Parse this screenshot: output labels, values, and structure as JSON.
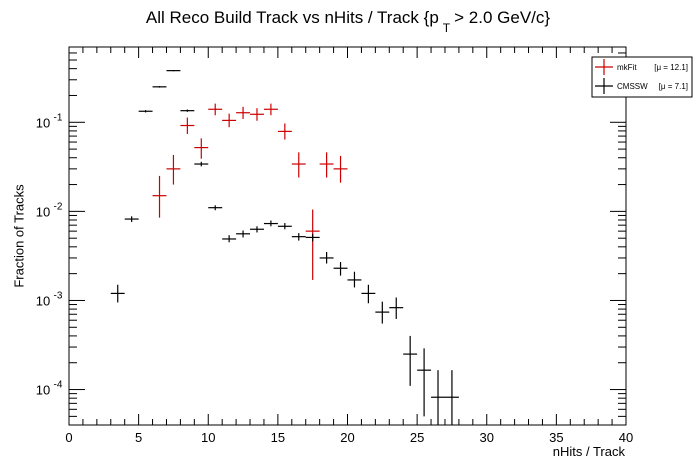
{
  "chart_data": {
    "type": "scatter",
    "title": {
      "prefix": "All Reco Build Track vs nHits / Track {p",
      "subscript": "T",
      "suffix": "> 2.0 GeV/c}"
    },
    "xlabel": "nHits / Track",
    "ylabel": "Fraction of Tracks",
    "xlim": [
      0,
      40
    ],
    "ylim": [
      4e-05,
      0.7
    ],
    "yscale": "log",
    "grid": false,
    "legend_position": "top-right",
    "x_ticks": [
      0,
      5,
      10,
      15,
      20,
      25,
      30,
      35,
      40
    ],
    "y_ticks": [
      {
        "value": 0.0001,
        "base": "10",
        "exp": "-4"
      },
      {
        "value": 0.001,
        "base": "10",
        "exp": "-3"
      },
      {
        "value": 0.01,
        "base": "10",
        "exp": "-2"
      },
      {
        "value": 0.1,
        "base": "10",
        "exp": "-1"
      }
    ],
    "series": [
      {
        "name": "mkFit",
        "legend_stat": "[μ = 12.1]",
        "color": "#cc0000",
        "points": [
          {
            "x": 6.5,
            "y": 0.015,
            "lo": 0.0085,
            "hi": 0.025
          },
          {
            "x": 7.5,
            "y": 0.03,
            "lo": 0.02,
            "hi": 0.043
          },
          {
            "x": 8.5,
            "y": 0.092,
            "lo": 0.074,
            "hi": 0.113
          },
          {
            "x": 9.5,
            "y": 0.052,
            "lo": 0.039,
            "hi": 0.066
          },
          {
            "x": 10.5,
            "y": 0.14,
            "lo": 0.12,
            "hi": 0.162
          },
          {
            "x": 11.5,
            "y": 0.105,
            "lo": 0.088,
            "hi": 0.125
          },
          {
            "x": 12.5,
            "y": 0.128,
            "lo": 0.109,
            "hi": 0.149
          },
          {
            "x": 13.5,
            "y": 0.123,
            "lo": 0.104,
            "hi": 0.144
          },
          {
            "x": 14.5,
            "y": 0.14,
            "lo": 0.12,
            "hi": 0.162
          },
          {
            "x": 15.5,
            "y": 0.079,
            "lo": 0.064,
            "hi": 0.097
          },
          {
            "x": 16.5,
            "y": 0.034,
            "lo": 0.024,
            "hi": 0.046
          },
          {
            "x": 17.5,
            "y": 0.006,
            "lo": 0.0017,
            "hi": 0.0105
          },
          {
            "x": 18.5,
            "y": 0.034,
            "lo": 0.024,
            "hi": 0.046
          },
          {
            "x": 19.5,
            "y": 0.03,
            "lo": 0.021,
            "hi": 0.042
          }
        ]
      },
      {
        "name": "CMSSW",
        "legend_stat": "[μ =  7.1]",
        "color": "#000000",
        "points": [
          {
            "x": 3.5,
            "y": 0.0012,
            "lo": 0.00095,
            "hi": 0.0015
          },
          {
            "x": 4.5,
            "y": 0.0082,
            "lo": 0.0076,
            "hi": 0.0088
          },
          {
            "x": 5.5,
            "y": 0.133,
            "lo": 0.129,
            "hi": 0.137
          },
          {
            "x": 6.5,
            "y": 0.25,
            "lo": 0.245,
            "hi": 0.255
          },
          {
            "x": 7.5,
            "y": 0.38,
            "lo": 0.374,
            "hi": 0.386
          },
          {
            "x": 8.5,
            "y": 0.135,
            "lo": 0.131,
            "hi": 0.139
          },
          {
            "x": 9.5,
            "y": 0.034,
            "lo": 0.032,
            "hi": 0.036
          },
          {
            "x": 10.5,
            "y": 0.011,
            "lo": 0.0103,
            "hi": 0.0117
          },
          {
            "x": 11.5,
            "y": 0.0049,
            "lo": 0.0045,
            "hi": 0.0054
          },
          {
            "x": 12.5,
            "y": 0.0056,
            "lo": 0.0051,
            "hi": 0.0061
          },
          {
            "x": 13.5,
            "y": 0.0063,
            "lo": 0.0058,
            "hi": 0.0068
          },
          {
            "x": 14.5,
            "y": 0.0073,
            "lo": 0.0068,
            "hi": 0.0079
          },
          {
            "x": 15.5,
            "y": 0.0068,
            "lo": 0.0063,
            "hi": 0.0074
          },
          {
            "x": 16.5,
            "y": 0.0052,
            "lo": 0.0047,
            "hi": 0.0057
          },
          {
            "x": 17.5,
            "y": 0.0051,
            "lo": 0.0046,
            "hi": 0.0056
          },
          {
            "x": 18.5,
            "y": 0.003,
            "lo": 0.0026,
            "hi": 0.0035
          },
          {
            "x": 19.5,
            "y": 0.0023,
            "lo": 0.0019,
            "hi": 0.0027
          },
          {
            "x": 20.5,
            "y": 0.0017,
            "lo": 0.0014,
            "hi": 0.0021
          },
          {
            "x": 21.5,
            "y": 0.0012,
            "lo": 0.00093,
            "hi": 0.0015
          },
          {
            "x": 22.5,
            "y": 0.00074,
            "lo": 0.00055,
            "hi": 0.00097
          },
          {
            "x": 23.5,
            "y": 0.00083,
            "lo": 0.00062,
            "hi": 0.00108
          },
          {
            "x": 24.5,
            "y": 0.00025,
            "lo": 0.00011,
            "hi": 0.0004
          },
          {
            "x": 25.5,
            "y": 0.000165,
            "lo": 5e-05,
            "hi": 0.00029
          },
          {
            "x": 26.5,
            "y": 8.2e-05,
            "lo": 4e-05,
            "hi": 0.000165
          },
          {
            "x": 27.5,
            "y": 8.2e-05,
            "lo": 4e-05,
            "hi": 0.000165
          }
        ]
      }
    ]
  }
}
